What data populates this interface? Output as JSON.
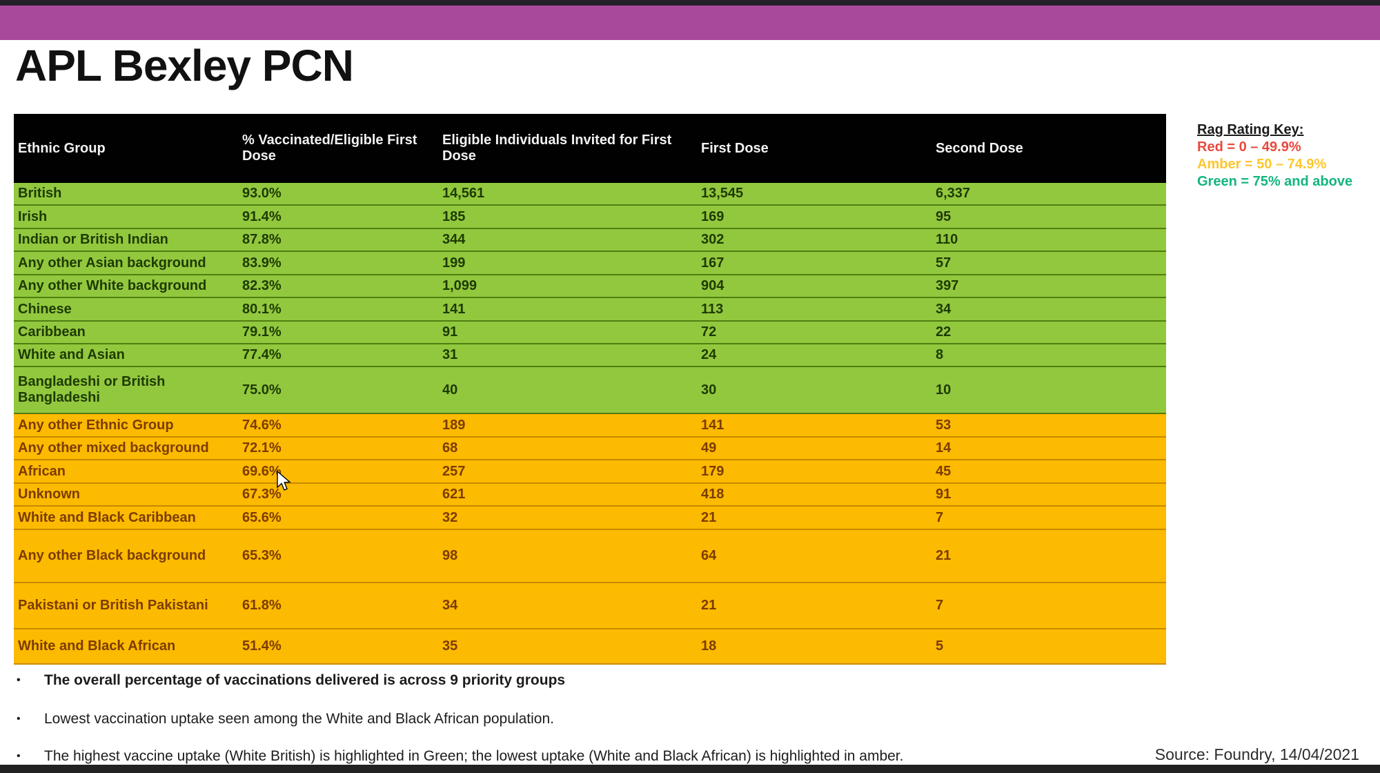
{
  "page": {
    "title": "APL Bexley PCN",
    "source": "Source: Foundry, 14/04/2021"
  },
  "colors": {
    "banner_purple": "#a8499c",
    "green_row": "#92c83e",
    "amber_row": "#fcba00",
    "header_black": "#010101",
    "rag_red": "#e8493c",
    "rag_amber": "#fdc62d",
    "rag_green": "#13b57e"
  },
  "rag_key": {
    "title": "Rag Rating Key:",
    "items": [
      {
        "label": "Red = 0 – 49.9%",
        "color": "#e8493c"
      },
      {
        "label": "Amber = 50 – 74.9%",
        "color": "#fdc62d"
      },
      {
        "label": "Green = 75% and above",
        "color": "#13b57e"
      }
    ]
  },
  "table": {
    "columns": [
      "Ethnic Group",
      "% Vaccinated/Eligible First Dose",
      "Eligible Individuals Invited for First Dose",
      "First Dose",
      "Second Dose"
    ],
    "rows": [
      {
        "group": "British",
        "pct": "93.0%",
        "invited": "14,561",
        "first": "13,545",
        "second": "6,337",
        "rag": "green"
      },
      {
        "group": "Irish",
        "pct": "91.4%",
        "invited": "185",
        "first": "169",
        "second": "95",
        "rag": "green"
      },
      {
        "group": "Indian or British Indian",
        "pct": "87.8%",
        "invited": "344",
        "first": "302",
        "second": "110",
        "rag": "green"
      },
      {
        "group": "Any other Asian background",
        "pct": "83.9%",
        "invited": "199",
        "first": "167",
        "second": "57",
        "rag": "green"
      },
      {
        "group": "Any other White background",
        "pct": "82.3%",
        "invited": "1,099",
        "first": "904",
        "second": "397",
        "rag": "green"
      },
      {
        "group": "Chinese",
        "pct": "80.1%",
        "invited": "141",
        "first": "113",
        "second": "34",
        "rag": "green"
      },
      {
        "group": "Caribbean",
        "pct": "79.1%",
        "invited": "91",
        "first": "72",
        "second": "22",
        "rag": "green"
      },
      {
        "group": "White and Asian",
        "pct": "77.4%",
        "invited": "31",
        "first": "24",
        "second": "8",
        "rag": "green"
      },
      {
        "group": "Bangladeshi or British Bangladeshi",
        "pct": "75.0%",
        "invited": "40",
        "first": "30",
        "second": "10",
        "rag": "green"
      },
      {
        "group": "Any other Ethnic Group",
        "pct": "74.6%",
        "invited": "189",
        "first": "141",
        "second": "53",
        "rag": "amber"
      },
      {
        "group": "Any other mixed background",
        "pct": "72.1%",
        "invited": "68",
        "first": "49",
        "second": "14",
        "rag": "amber"
      },
      {
        "group": "African",
        "pct": "69.6%",
        "invited": "257",
        "first": "179",
        "second": "45",
        "rag": "amber"
      },
      {
        "group": "Unknown",
        "pct": "67.3%",
        "invited": "621",
        "first": "418",
        "second": "91",
        "rag": "amber"
      },
      {
        "group": "White and Black Caribbean",
        "pct": "65.6%",
        "invited": "32",
        "first": "21",
        "second": "7",
        "rag": "amber"
      },
      {
        "group": "Any other Black background",
        "pct": "65.3%",
        "invited": "98",
        "first": "64",
        "second": "21",
        "rag": "amber"
      },
      {
        "group": "Pakistani or British Pakistani",
        "pct": "61.8%",
        "invited": "34",
        "first": "21",
        "second": "7",
        "rag": "amber"
      },
      {
        "group": "White and Black African",
        "pct": "51.4%",
        "invited": "35",
        "first": "18",
        "second": "5",
        "rag": "amber"
      }
    ]
  },
  "bullets": [
    {
      "text": "The overall percentage of vaccinations delivered is across 9 priority groups",
      "bold": true
    },
    {
      "text": "Lowest vaccination uptake seen among the White and Black African population.",
      "bold": false
    },
    {
      "text": "The highest vaccine uptake (White British) is highlighted in Green; the lowest uptake (White and Black African) is highlighted in amber.",
      "bold": false
    }
  ]
}
